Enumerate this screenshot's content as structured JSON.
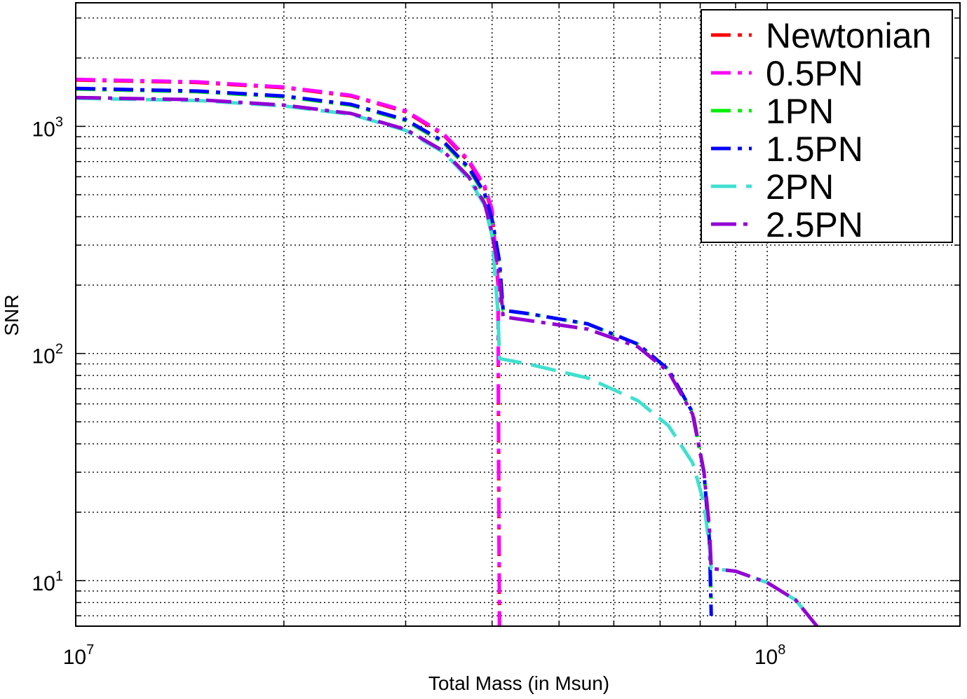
{
  "chart_data": {
    "type": "line",
    "xlabel": "Total Mass (in Msun)",
    "ylabel": "SNR",
    "xscale": "log",
    "yscale": "log",
    "xlim": [
      10000000,
      190000000
    ],
    "ylim": [
      6.3,
      3500
    ],
    "grid": true,
    "legend_position": "top-right",
    "x_ticks": [
      {
        "value": 10000000,
        "base": "10",
        "exp": "7"
      },
      {
        "value": 100000000,
        "base": "10",
        "exp": "8"
      }
    ],
    "y_ticks": [
      {
        "value": 10,
        "base": "10",
        "exp": "1"
      },
      {
        "value": 100,
        "base": "10",
        "exp": "2"
      },
      {
        "value": 1000,
        "base": "10",
        "exp": "3"
      }
    ],
    "series": [
      {
        "name": "Newtonian",
        "color": "#ff0000",
        "dash": "28,10,6,10",
        "x": [
          10000000,
          15000000,
          20000000,
          25000000,
          30000000,
          34000000,
          37000000,
          39000000,
          40000000,
          40800000,
          40900000,
          41000000
        ],
        "y": [
          1600,
          1560,
          1480,
          1360,
          1160,
          920,
          700,
          540,
          420,
          200,
          30,
          6.3
        ]
      },
      {
        "name": "0.5PN",
        "color": "#ff00ff",
        "dash": "28,10,6,10",
        "x": [
          10000000,
          15000000,
          20000000,
          25000000,
          30000000,
          34000000,
          37000000,
          39000000,
          40000000,
          40800000,
          40900000,
          41000000
        ],
        "y": [
          1610,
          1570,
          1490,
          1370,
          1170,
          930,
          710,
          550,
          430,
          210,
          30,
          6.3
        ]
      },
      {
        "name": "1PN",
        "color": "#00ee00",
        "dash": "28,10,6,10",
        "x": [
          10000000,
          15000000,
          20000000,
          25000000,
          30000000,
          34000000,
          37000000,
          39000000,
          40000000,
          41000000,
          41500000,
          45000000,
          55000000,
          65000000,
          72000000,
          78000000,
          81000000,
          82500000,
          83000000
        ],
        "y": [
          1460,
          1420,
          1350,
          1240,
          1060,
          850,
          650,
          500,
          380,
          250,
          155,
          150,
          135,
          110,
          85,
          55,
          30,
          15,
          8
        ]
      },
      {
        "name": "1.5PN",
        "color": "#0000ff",
        "dash": "28,10,6,10",
        "x": [
          10000000,
          15000000,
          20000000,
          25000000,
          30000000,
          34000000,
          37000000,
          39000000,
          40000000,
          41000000,
          41500000,
          45000000,
          55000000,
          65000000,
          72000000,
          78000000,
          81000000,
          82500000,
          83000000
        ],
        "y": [
          1470,
          1430,
          1360,
          1250,
          1070,
          860,
          660,
          510,
          390,
          255,
          155,
          150,
          135,
          110,
          85,
          55,
          30,
          15,
          7
        ]
      },
      {
        "name": "2PN",
        "color": "#40e0d0",
        "dash": "36,14",
        "x": [
          10000000,
          15000000,
          20000000,
          25000000,
          30000000,
          34000000,
          37000000,
          39000000,
          40000000,
          40800000,
          41000000,
          45000000,
          55000000,
          65000000,
          72000000,
          78000000,
          81000000,
          82500000,
          83000000,
          90000000,
          100000000,
          110000000,
          118000000
        ],
        "y": [
          1330,
          1300,
          1230,
          1130,
          960,
          770,
          590,
          450,
          330,
          150,
          95,
          90,
          78,
          62,
          48,
          33,
          22,
          14,
          11.3,
          11,
          9.8,
          8.2,
          6.3
        ]
      },
      {
        "name": "2.5PN",
        "color": "#9400d3",
        "dash": "36,10,6,10",
        "x": [
          10000000,
          15000000,
          20000000,
          25000000,
          30000000,
          34000000,
          37000000,
          39000000,
          40000000,
          41000000,
          41500000,
          45000000,
          55000000,
          65000000,
          72000000,
          78000000,
          81000000,
          82500000,
          83000000,
          90000000,
          100000000,
          110000000,
          118000000
        ],
        "y": [
          1340,
          1310,
          1240,
          1140,
          970,
          780,
          600,
          460,
          340,
          220,
          145,
          140,
          128,
          107,
          83,
          54,
          30,
          17,
          11.3,
          11,
          9.8,
          8.2,
          6.3
        ]
      }
    ]
  }
}
